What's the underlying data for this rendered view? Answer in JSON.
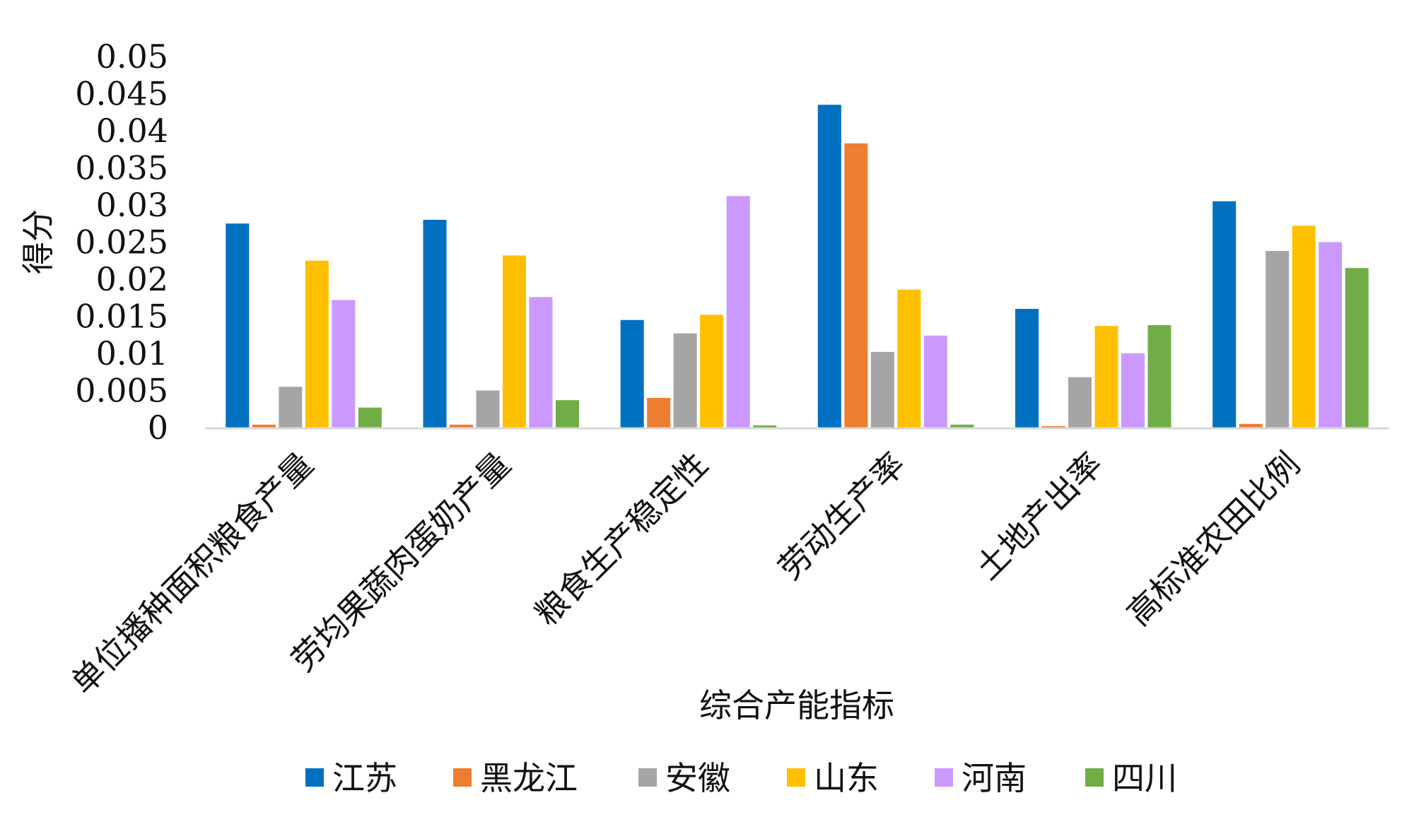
{
  "chart_data": {
    "type": "bar",
    "xlabel": "综合产能指标",
    "ylabel": "得分",
    "ylim": [
      0,
      0.05
    ],
    "yticks": [
      "0",
      "0.005",
      "0.01",
      "0.015",
      "0.02",
      "0.025",
      "0.03",
      "0.035",
      "0.04",
      "0.045",
      "0.05"
    ],
    "categories": [
      "单位播种面积粮食产量",
      "劳均果蔬肉蛋奶产量",
      "粮食生产稳定性",
      "劳动生产率",
      "土地产出率",
      "高标准农田比例"
    ],
    "series": [
      {
        "name": "江苏",
        "color": "#0070C0",
        "values": [
          0.0275,
          0.028,
          0.0145,
          0.0435,
          0.016,
          0.0305
        ]
      },
      {
        "name": "黑龙江",
        "color": "#ED7D31",
        "values": [
          0.0004,
          0.0004,
          0.004,
          0.0383,
          0.0002,
          0.0005
        ]
      },
      {
        "name": "安徽",
        "color": "#A5A5A5",
        "values": [
          0.0055,
          0.005,
          0.0127,
          0.0102,
          0.0068,
          0.0238
        ]
      },
      {
        "name": "山东",
        "color": "#FFC000",
        "values": [
          0.0225,
          0.0232,
          0.0152,
          0.0186,
          0.0137,
          0.0272
        ]
      },
      {
        "name": "河南",
        "color": "#CC99FF",
        "values": [
          0.0172,
          0.0176,
          0.0312,
          0.0124,
          0.01,
          0.025
        ]
      },
      {
        "name": "四川",
        "color": "#70AD47",
        "values": [
          0.0027,
          0.0037,
          0.0003,
          0.0004,
          0.0138,
          0.0215
        ]
      }
    ],
    "grid": false,
    "legend_position": "bottom"
  }
}
